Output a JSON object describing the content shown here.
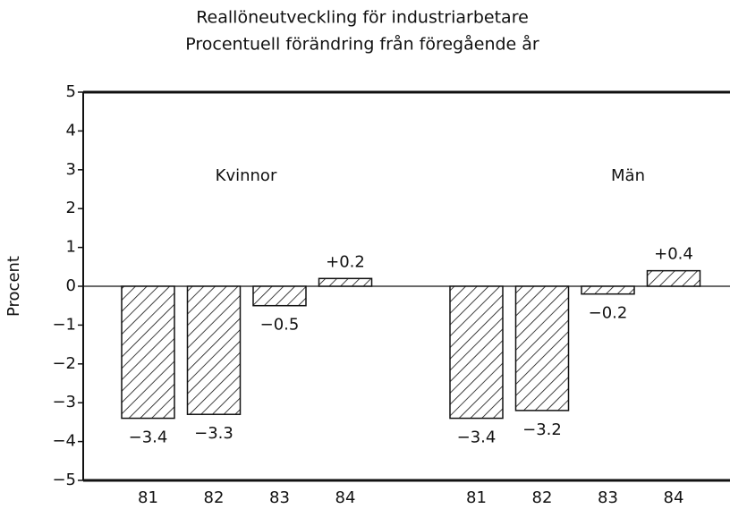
{
  "chart_data": {
    "type": "bar",
    "title": "Reallöneutveckling för industriarbetare",
    "subtitle": "Procentuell förändring från föregående år",
    "y_label": "Procent",
    "categories": [
      "81",
      "82",
      "83",
      "84"
    ],
    "series": [
      {
        "name": "Kvinnor",
        "color": "#111111",
        "values": [
          -3.4,
          -3.3,
          -0.5,
          0.2
        ],
        "value_labels": [
          "−3.4",
          "−3.3",
          "−0.5",
          "+0.2"
        ]
      },
      {
        "name": "Män",
        "color": "#111111",
        "values": [
          -3.4,
          -3.2,
          -0.2,
          0.4
        ],
        "value_labels": [
          "−3.4",
          "−3.2",
          "−0.2",
          "+0.4"
        ]
      }
    ],
    "ylim": [
      -5,
      5
    ],
    "yticks": [
      {
        "value": -5,
        "label": "−5"
      },
      {
        "value": -4,
        "label": "−4"
      },
      {
        "value": -3,
        "label": "−3"
      },
      {
        "value": -2,
        "label": "−2"
      },
      {
        "value": -1,
        "label": "−1"
      },
      0,
      1,
      2,
      3,
      4,
      5
    ],
    "grid": false
  }
}
